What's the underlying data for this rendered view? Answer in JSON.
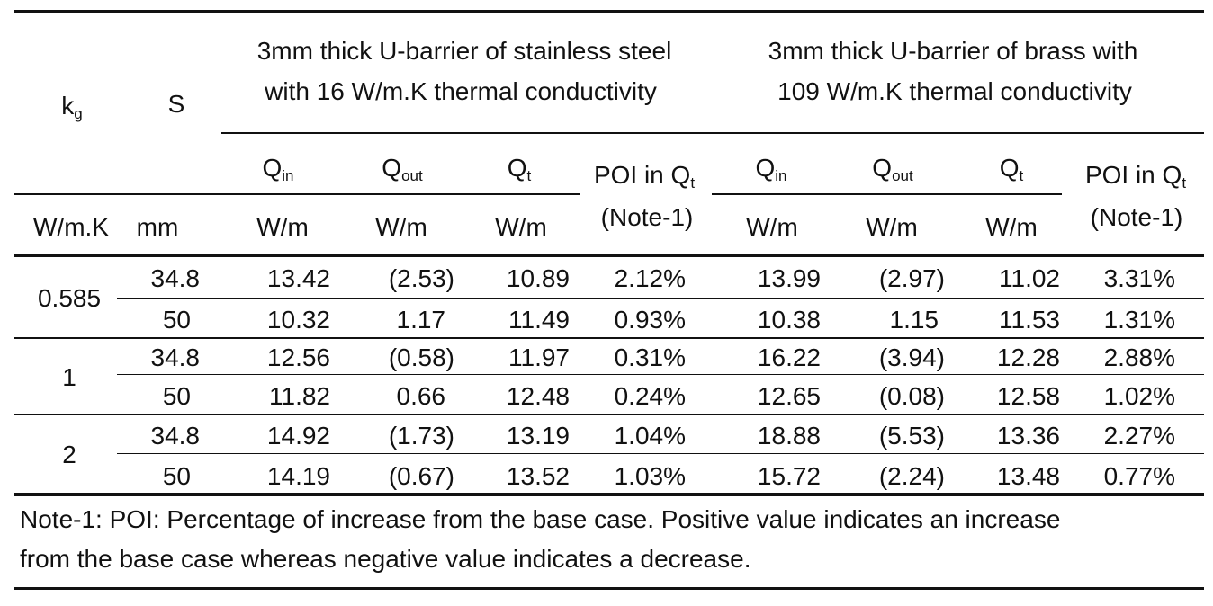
{
  "header": {
    "kg_main": "k",
    "kg_sub": "g",
    "s_label": "S",
    "group1_line1": "3mm thick U-barrier of stainless steel",
    "group1_line2": "with 16 W/m.K thermal conductivity",
    "group2_line1": "3mm thick U-barrier of brass with",
    "group2_line2": "109 W/m.K thermal conductivity",
    "q_main": "Q",
    "sub_in": "in",
    "sub_out": "out",
    "sub_t": "t",
    "poi_label": "POI in Q",
    "poi_note": "(Note-1)",
    "unit_kg": "W/m.K",
    "unit_s": "mm",
    "unit_q": "W/m"
  },
  "rows": [
    {
      "kg": "0.585",
      "s": "34.8",
      "ss_qin": "13.42",
      "ss_qout": "(2.53)",
      "ss_qt": "10.89",
      "ss_poi": "2.12%",
      "br_qin": "13.99",
      "br_qout": "(2.97)",
      "br_qt": "11.02",
      "br_poi": "3.31%"
    },
    {
      "kg": "",
      "s": "50",
      "ss_qin": "10.32",
      "ss_qout": "1.17",
      "ss_qt": "11.49",
      "ss_poi": "0.93%",
      "br_qin": "10.38",
      "br_qout": "1.15",
      "br_qt": "11.53",
      "br_poi": "1.31%"
    },
    {
      "kg": "1",
      "s": "34.8",
      "ss_qin": "12.56",
      "ss_qout": "(0.58)",
      "ss_qt": "11.97",
      "ss_poi": "0.31%",
      "br_qin": "16.22",
      "br_qout": "(3.94)",
      "br_qt": "12.28",
      "br_poi": "2.88%"
    },
    {
      "kg": "",
      "s": "50",
      "ss_qin": "11.82",
      "ss_qout": "0.66",
      "ss_qt": "12.48",
      "ss_poi": "0.24%",
      "br_qin": "12.65",
      "br_qout": "(0.08)",
      "br_qt": "12.58",
      "br_poi": "1.02%"
    },
    {
      "kg": "2",
      "s": "34.8",
      "ss_qin": "14.92",
      "ss_qout": "(1.73)",
      "ss_qt": "13.19",
      "ss_poi": "1.04%",
      "br_qin": "18.88",
      "br_qout": "(5.53)",
      "br_qt": "13.36",
      "br_poi": "2.27%"
    },
    {
      "kg": "",
      "s": "50",
      "ss_qin": "14.19",
      "ss_qout": "(0.67)",
      "ss_qt": "13.52",
      "ss_poi": "1.03%",
      "br_qin": "15.72",
      "br_qout": "(2.24)",
      "br_qt": "13.48",
      "br_poi": "0.77%"
    }
  ],
  "note": {
    "line1": "Note-1: POI: Percentage of increase from the base case. Positive value indicates an increase",
    "line2": "from the base case whereas negative value indicates a decrease."
  }
}
